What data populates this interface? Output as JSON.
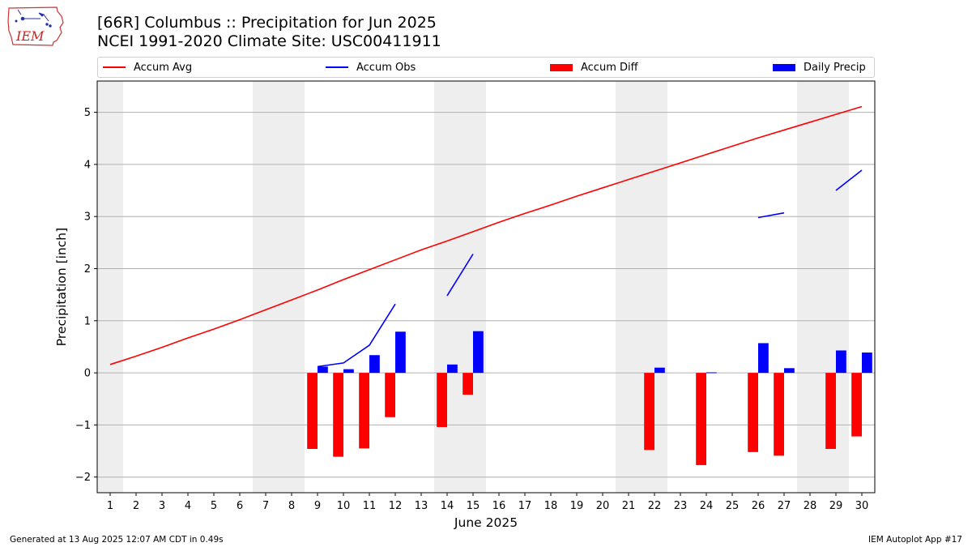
{
  "header": {
    "logo_text": "IEM",
    "title_line1": "[66R] Columbus :: Precipitation for Jun 2025",
    "title_line2": "NCEI 1991-2020 Climate Site: USC00411911"
  },
  "legend": [
    {
      "label": "Accum Avg",
      "kind": "line",
      "color": "#ff0000"
    },
    {
      "label": "Accum Obs",
      "kind": "line",
      "color": "#0000ff"
    },
    {
      "label": "Accum Diff",
      "kind": "patch",
      "color": "#ff0000"
    },
    {
      "label": "Daily Precip",
      "kind": "patch",
      "color": "#0000ff"
    }
  ],
  "footer": {
    "left": "Generated at 13 Aug 2025 12:07 AM CDT in 0.49s",
    "right": "IEM Autoplot App #17"
  },
  "chart_data": {
    "type": "bar",
    "xlabel": "June 2025",
    "ylabel": "Precipitation [inch]",
    "ylim": [
      -2.3,
      5.6
    ],
    "xlim": [
      0.5,
      30.5
    ],
    "xticks": [
      "1",
      "2",
      "3",
      "4",
      "5",
      "6",
      "7",
      "8",
      "9",
      "10",
      "11",
      "12",
      "13",
      "14",
      "15",
      "16",
      "17",
      "18",
      "19",
      "20",
      "21",
      "22",
      "23",
      "24",
      "25",
      "26",
      "27",
      "28",
      "29",
      "30"
    ],
    "yticks": [
      -2,
      -1,
      0,
      1,
      2,
      3,
      4,
      5
    ],
    "ytick_labels": [
      "−2",
      "−1",
      "0",
      "1",
      "2",
      "3",
      "4",
      "5"
    ],
    "grid": "horizontal",
    "legend_position": "top",
    "weekend_shading": [
      [
        0.5,
        1.5
      ],
      [
        6.5,
        8.5
      ],
      [
        13.5,
        15.5
      ],
      [
        20.5,
        22.5
      ],
      [
        27.5,
        29.5
      ]
    ],
    "shade_color": "#eeeeee",
    "series": [
      {
        "name": "Accum Avg",
        "type": "line",
        "color": "#ff0000",
        "x": [
          1,
          2,
          3,
          4,
          5,
          6,
          7,
          8,
          9,
          10,
          11,
          12,
          13,
          14,
          15,
          16,
          17,
          18,
          19,
          20,
          21,
          22,
          23,
          24,
          25,
          26,
          27,
          28,
          29,
          30
        ],
        "values": [
          0.16,
          0.32,
          0.49,
          0.67,
          0.84,
          1.02,
          1.21,
          1.4,
          1.59,
          1.79,
          1.98,
          2.17,
          2.36,
          2.53,
          2.71,
          2.89,
          3.06,
          3.22,
          3.39,
          3.55,
          3.71,
          3.87,
          4.03,
          4.19,
          4.35,
          4.51,
          4.66,
          4.81,
          4.96,
          5.11
        ]
      },
      {
        "name": "Accum Obs",
        "type": "line",
        "color": "#0000ff",
        "segments": [
          {
            "x": [
              9,
              10,
              11,
              12
            ],
            "values": [
              0.12,
              0.19,
              0.53,
              1.32
            ]
          },
          {
            "x": [
              14,
              15
            ],
            "values": [
              1.48,
              2.28
            ]
          },
          {
            "x": [
              26,
              27
            ],
            "values": [
              2.98,
              3.07
            ]
          },
          {
            "x": [
              29,
              30
            ],
            "values": [
              3.5,
              3.89
            ]
          }
        ]
      },
      {
        "name": "Accum Diff",
        "type": "bar",
        "color": "#ff0000",
        "x": [
          9,
          10,
          11,
          12,
          14,
          15,
          22,
          24,
          26,
          27,
          29,
          30
        ],
        "values": [
          -1.46,
          -1.61,
          -1.45,
          -0.85,
          -1.04,
          -0.42,
          -1.48,
          -1.77,
          -1.52,
          -1.59,
          -1.46,
          -1.22
        ]
      },
      {
        "name": "Daily Precip",
        "type": "bar",
        "color": "#0000ff",
        "x": [
          9,
          10,
          11,
          12,
          14,
          15,
          22,
          24,
          26,
          27,
          29,
          30
        ],
        "values": [
          0.12,
          0.07,
          0.34,
          0.79,
          0.16,
          0.8,
          0.1,
          0.01,
          0.57,
          0.09,
          0.43,
          0.39
        ]
      }
    ]
  }
}
